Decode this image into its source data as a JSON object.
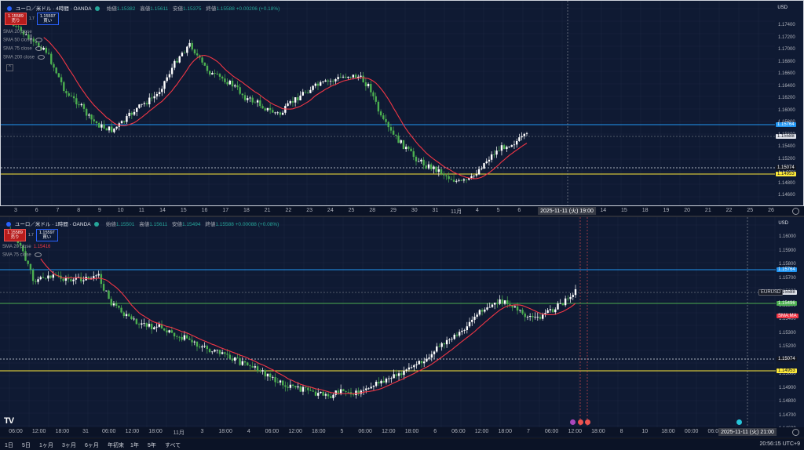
{
  "top": {
    "title": "ユーロ／米ドル · 4時間 · OANDA",
    "ohlc": [
      {
        "k": "始値",
        "v": "1.15382"
      },
      {
        "k": "高値",
        "v": "1.15611"
      },
      {
        "k": "安値",
        "v": "1.15375"
      },
      {
        "k": "終値",
        "v": "1.15588 +0.00206 (+0.18%)"
      }
    ],
    "sell_price": "1.15589",
    "sell_label": "売り",
    "buy_price": "1.15597",
    "buy_label": "買い",
    "spread": "1.7",
    "indicators": [
      {
        "label": "SMA 20 close",
        "value": ""
      },
      {
        "label": "SMA 50 close",
        "value": ""
      },
      {
        "label": "SMA 75 close",
        "value": ""
      },
      {
        "label": "SMA 200 close",
        "value": ""
      }
    ],
    "currency": "USD",
    "y_ticks": [
      "1.17400",
      "1.17200",
      "1.17000",
      "1.16800",
      "1.16600",
      "1.16400",
      "1.16200",
      "1.16000",
      "1.15800",
      "1.15600",
      "1.15400",
      "1.15200",
      "1.15000",
      "1.14800",
      "1.14600"
    ],
    "tags": {
      "blue": "1.15764",
      "white": "1.15588",
      "dotted": "1.15074",
      "yellow": "1.14953"
    },
    "x_ticks": [
      "3",
      "6",
      "7",
      "8",
      "9",
      "10",
      "11",
      "14",
      "15",
      "16",
      "17",
      "18",
      "21",
      "22",
      "23",
      "24",
      "25",
      "28",
      "29",
      "30",
      "31",
      "11月",
      "4",
      "5",
      "6",
      "7",
      "8",
      "13",
      "14",
      "15",
      "18",
      "19",
      "20",
      "21",
      "22",
      "25",
      "26"
    ],
    "crosshair_label": "2025-11-11 (火)  19:00"
  },
  "bottom": {
    "title": "ユーロ／米ドル · 1時間 · OANDA",
    "ohlc": [
      {
        "k": "始値",
        "v": "1.15501"
      },
      {
        "k": "高値",
        "v": "1.15611"
      },
      {
        "k": "安値",
        "v": "1.15494"
      },
      {
        "k": "終値",
        "v": "1.15588 +0.00088 (+0.08%)"
      }
    ],
    "sell_price": "1.15589",
    "sell_label": "売り",
    "buy_price": "1.15597",
    "buy_label": "買い",
    "spread": "1.7",
    "indicators": [
      {
        "label": "SMA 20 close",
        "value": "1.15416"
      },
      {
        "label": "SMA 75 close",
        "value": ""
      }
    ],
    "currency": "USD",
    "y_ticks": [
      "1.16000",
      "1.15900",
      "1.15800",
      "1.15700",
      "1.15600",
      "1.15500",
      "1.15400",
      "1.15300",
      "1.15200",
      "1.15100",
      "1.15000",
      "1.14900",
      "1.14800",
      "1.14700",
      "1.14600"
    ],
    "tags": {
      "blue": "1.15764",
      "eurusd": "EURUSD",
      "white": "1.15588",
      "green": "1.15496",
      "sma": "SMA:MA",
      "dotted": "1.15074",
      "yellow": "1.14953"
    },
    "x_ticks": [
      "06:00",
      "12:00",
      "18:00",
      "31",
      "06:00",
      "12:00",
      "18:00",
      "11月",
      "3",
      "18:00",
      "4",
      "06:00",
      "12:00",
      "18:00",
      "5",
      "06:00",
      "12:00",
      "18:00",
      "6",
      "06:00",
      "12:00",
      "18:00",
      "7",
      "06:00",
      "12:00",
      "18:00",
      "8",
      "10",
      "18:00",
      "00:00",
      "06:00",
      "12:00"
    ],
    "crosshair_label": "2025-11-11 (火)  21:00"
  },
  "bottombar": {
    "timeframes": [
      "1日",
      "5日",
      "1ヶ月",
      "3ヶ月",
      "6ヶ月",
      "年初来",
      "1年",
      "5年",
      "すべて"
    ],
    "clock": "20:56:15 UTC+9"
  },
  "colors": {
    "up": "#ffffff",
    "down": "#4caf50",
    "sma": "#f23645",
    "blue": "#2196f3",
    "green": "#4caf50",
    "yellow": "#ffeb3b"
  }
}
